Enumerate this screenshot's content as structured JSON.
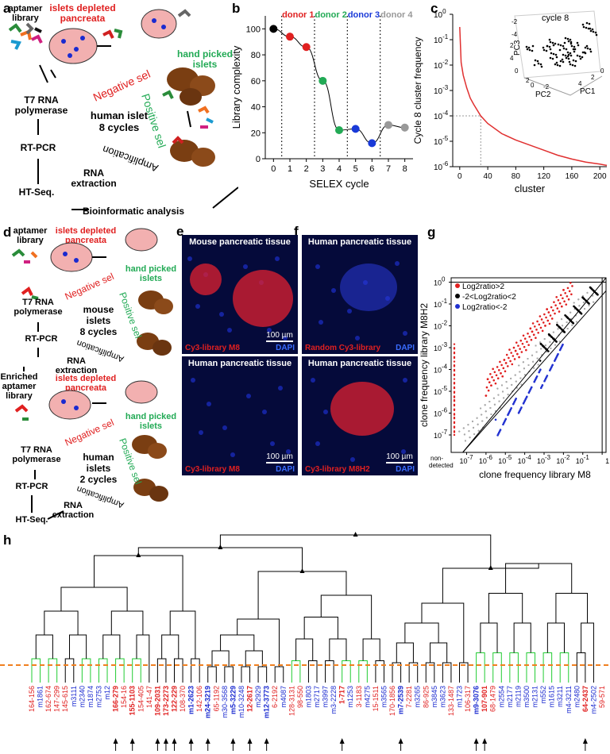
{
  "panels": {
    "a": "a",
    "b": "b",
    "c": "c",
    "d": "d",
    "e": "e",
    "f": "f",
    "g": "g",
    "h": "h"
  },
  "schemeA": {
    "aptamer_library": "aptamer\nlibrary",
    "islets_depleted": "islets depleted\npancreata",
    "hand_picked": "hand picked\nislets",
    "t7": "T7 RNA\npolymerase",
    "rtpcr": "RT-PCR",
    "rna_extraction": "RNA\nextraction",
    "htseq": "HT-Seq.",
    "bioinformatic": "Bioinformatic analysis",
    "center": "human islet\n8 cycles",
    "negative": "Negative sel",
    "positive": "Positive sel",
    "amplification": "Amplification"
  },
  "schemeD": {
    "aptamer_library": "aptamer\nlibrary",
    "islets_depleted": "islets depleted\npancreata",
    "hand_picked": "hand picked\nislets",
    "t7": "T7 RNA\npolymerase",
    "rtpcr": "RT-PCR",
    "rna_extraction": "RNA\nextraction",
    "center1": "mouse\nislets\n8 cycles",
    "enriched": "Enriched\naptamer\nlibrary",
    "islets_depleted2": "islets depleted\npancreata",
    "hand_picked2": "hand picked\nislets",
    "t72": "T7 RNA\npolymerase",
    "rtpcr2": "RT-PCR",
    "rna_extraction2": "RNA\nextraction",
    "htseq": "HT-Seq.",
    "center2": "human\nislets\n2 cycles",
    "negative": "Negative sel",
    "positive": "Positive sel",
    "amplification": "Amplification"
  },
  "chart_data": [
    {
      "type": "line",
      "panel": "b",
      "title": "",
      "xlabel": "SELEX cycle",
      "ylabel": "Library complexity",
      "x": [
        0,
        1,
        2,
        3,
        4,
        5,
        6,
        7,
        8
      ],
      "values": [
        100,
        94,
        86,
        60,
        22,
        23,
        12,
        26,
        24
      ],
      "point_colors": [
        "#000000",
        "#e02020",
        "#e02020",
        "#22aa55",
        "#22aa55",
        "#1a3ad8",
        "#1a3ad8",
        "#999999",
        "#999999"
      ],
      "ylim": [
        0,
        110
      ],
      "xlim": [
        -0.5,
        8.5
      ],
      "yticks": [
        0,
        20,
        40,
        60,
        80,
        100
      ],
      "xticks": [
        0,
        1,
        2,
        3,
        4,
        5,
        6,
        7,
        8
      ],
      "donors": [
        {
          "label": "donor 1",
          "color": "#e02020"
        },
        {
          "label": "donor 2",
          "color": "#22aa55"
        },
        {
          "label": "donor 3",
          "color": "#1a3ad8"
        },
        {
          "label": "donor 4",
          "color": "#999999"
        }
      ],
      "donor_boundaries": [
        0.5,
        2.5,
        4.5,
        6.5
      ]
    },
    {
      "type": "line",
      "panel": "c",
      "xlabel": "cluster",
      "ylabel": "Cycle 8 cluster frequency",
      "scale_y": "log",
      "xticks": [
        0,
        40,
        80,
        120,
        160,
        200
      ],
      "ytick_exponents": [
        0,
        -1,
        -2,
        -3,
        -4,
        -5,
        -6
      ],
      "curve_x": [
        0,
        2,
        5,
        10,
        15,
        20,
        30,
        40,
        60,
        80,
        100,
        120,
        140,
        160,
        180,
        200,
        210
      ],
      "curve_y_log10": [
        -0.5,
        -1.9,
        -2.4,
        -2.9,
        -3.3,
        -3.55,
        -4.0,
        -4.3,
        -4.7,
        -4.95,
        -5.15,
        -5.35,
        -5.55,
        -5.7,
        -5.82,
        -5.9,
        -5.95
      ],
      "marker": {
        "x": 30,
        "y_log10": -4
      },
      "line_color": "#e03030",
      "inset": {
        "title": "cycle 8",
        "axes": [
          "PC1",
          "PC2",
          "PC3"
        ],
        "ticks": [
          "2",
          "4",
          "0",
          "-2",
          "-4",
          "2",
          "0",
          "-2",
          "4",
          "2",
          "0"
        ]
      }
    },
    {
      "type": "scatter",
      "panel": "g",
      "xlabel": "clone frequency library M8",
      "ylabel": "clone frequency library M8H2",
      "scale": "log",
      "tick_exponents": [
        -7,
        -6,
        -5,
        -4,
        -3,
        -2,
        -1,
        0
      ],
      "nondetected_label": "non-\ndetected",
      "xtick_last": "1",
      "legend": [
        {
          "label": "Log2ratio>2",
          "color": "#e02020"
        },
        {
          "label": "-2<Log2ratio<2",
          "color": "#000000"
        },
        {
          "label": "Log2ratio<-2",
          "color": "#2030d0"
        }
      ]
    },
    {
      "type": "dendrogram",
      "panel": "h",
      "leaves": [
        {
          "label": "164-156",
          "color": "#e02020",
          "bold": false
        },
        {
          "label": "m1861",
          "color": "#1a2ad0",
          "bold": false
        },
        {
          "label": "162-674",
          "color": "#e02020",
          "bold": false
        },
        {
          "label": "147-299",
          "color": "#e02020",
          "bold": false
        },
        {
          "label": "145-615",
          "color": "#e02020",
          "bold": false
        },
        {
          "label": "m3111",
          "color": "#1a2ad0",
          "bold": false
        },
        {
          "label": "m2340",
          "color": "#1a2ad0",
          "bold": false
        },
        {
          "label": "m1874",
          "color": "#1a2ad0",
          "bold": false
        },
        {
          "label": "m2753",
          "color": "#1a2ad0",
          "bold": false
        },
        {
          "label": "m12",
          "color": "#1a2ad0",
          "bold": false
        },
        {
          "label": "166-279",
          "color": "#e02020",
          "bold": true
        },
        {
          "label": "154-16",
          "color": "#e02020",
          "bold": false
        },
        {
          "label": "155-1103",
          "color": "#e02020",
          "bold": true
        },
        {
          "label": "154-405",
          "color": "#e02020",
          "bold": false
        },
        {
          "label": "141-47",
          "color": "#e02020",
          "bold": false
        },
        {
          "label": "109-2031",
          "color": "#e02020",
          "bold": true
        },
        {
          "label": "173-2273",
          "color": "#e02020",
          "bold": true
        },
        {
          "label": "122-229",
          "color": "#e02020",
          "bold": true
        },
        {
          "label": "108-370",
          "color": "#e02020",
          "bold": false
        },
        {
          "label": "m1-2623",
          "color": "#1a2ad0",
          "bold": true
        },
        {
          "label": "142-106",
          "color": "#e02020",
          "bold": false
        },
        {
          "label": "m24-3219",
          "color": "#1a2ad0",
          "bold": true
        },
        {
          "label": "65-1192",
          "color": "#e02020",
          "bold": false
        },
        {
          "label": "m30-3568",
          "color": "#1a2ad0",
          "bold": false
        },
        {
          "label": "m5-3229",
          "color": "#1a2ad0",
          "bold": true
        },
        {
          "label": "m10-3248",
          "color": "#1a2ad0",
          "bold": false
        },
        {
          "label": "12-2617",
          "color": "#e02020",
          "bold": true
        },
        {
          "label": "m2929",
          "color": "#1a2ad0",
          "bold": false
        },
        {
          "label": "m12-3773",
          "color": "#1a2ad0",
          "bold": true
        },
        {
          "label": "6-2192",
          "color": "#e02020",
          "bold": false
        },
        {
          "label": "m4087",
          "color": "#1a2ad0",
          "bold": false
        },
        {
          "label": "128-3131",
          "color": "#e02020",
          "bold": false
        },
        {
          "label": "98-550",
          "color": "#e02020",
          "bold": false
        },
        {
          "label": "m1803",
          "color": "#1a2ad0",
          "bold": false
        },
        {
          "label": "m2717",
          "color": "#1a2ad0",
          "bold": false
        },
        {
          "label": "m3997",
          "color": "#1a2ad0",
          "bold": false
        },
        {
          "label": "m3-2228",
          "color": "#1a2ad0",
          "bold": false
        },
        {
          "label": "1-717",
          "color": "#e02020",
          "bold": true
        },
        {
          "label": "m1253",
          "color": "#1a2ad0",
          "bold": false
        },
        {
          "label": "3-1183",
          "color": "#e02020",
          "bold": false
        },
        {
          "label": "m4275",
          "color": "#1a2ad0",
          "bold": false
        },
        {
          "label": "15-1511",
          "color": "#e02020",
          "bold": false
        },
        {
          "label": "m3565",
          "color": "#1a2ad0",
          "bold": false
        },
        {
          "label": "170-1856",
          "color": "#e02020",
          "bold": false
        },
        {
          "label": "m7-2539",
          "color": "#1a2ad0",
          "bold": true
        },
        {
          "label": "7-2281",
          "color": "#e02020",
          "bold": false
        },
        {
          "label": "m3265",
          "color": "#1a2ad0",
          "bold": false
        },
        {
          "label": "86-925",
          "color": "#e02020",
          "bold": false
        },
        {
          "label": "m3845",
          "color": "#1a2ad0",
          "bold": false
        },
        {
          "label": "m3623",
          "color": "#1a2ad0",
          "bold": false
        },
        {
          "label": "133-1487",
          "color": "#e02020",
          "bold": false
        },
        {
          "label": "m1723",
          "color": "#1a2ad0",
          "bold": false
        },
        {
          "label": "106-317",
          "color": "#e02020",
          "bold": false
        },
        {
          "label": "m9-3076",
          "color": "#1a2ad0",
          "bold": true
        },
        {
          "label": "107-901",
          "color": "#e02020",
          "bold": true
        },
        {
          "label": "68-1479",
          "color": "#e02020",
          "bold": false
        },
        {
          "label": "m2554",
          "color": "#1a2ad0",
          "bold": false
        },
        {
          "label": "m2177",
          "color": "#1a2ad0",
          "bold": false
        },
        {
          "label": "m2119",
          "color": "#1a2ad0",
          "bold": false
        },
        {
          "label": "m3500",
          "color": "#1a2ad0",
          "bold": false
        },
        {
          "label": "m2131",
          "color": "#1a2ad0",
          "bold": false
        },
        {
          "label": "m552",
          "color": "#1a2ad0",
          "bold": false
        },
        {
          "label": "m1615",
          "color": "#1a2ad0",
          "bold": false
        },
        {
          "label": "m3211",
          "color": "#1a2ad0",
          "bold": false
        },
        {
          "label": "m4-3211",
          "color": "#1a2ad0",
          "bold": false
        },
        {
          "label": "m2480",
          "color": "#1a2ad0",
          "bold": false
        },
        {
          "label": "64-2437",
          "color": "#e02020",
          "bold": true
        },
        {
          "label": "m4-2502",
          "color": "#1a2ad0",
          "bold": false
        },
        {
          "label": "59-571",
          "color": "#e02020",
          "bold": false
        }
      ],
      "arrow_leaf_indices": [
        10,
        12,
        15,
        16,
        17,
        19,
        21,
        24,
        26,
        28,
        37,
        44,
        53,
        54,
        66
      ]
    }
  ],
  "micrographs": {
    "e_top": {
      "title": "Mouse pancreatic tissue",
      "caption": "Cy3-library M8",
      "dapi": "DAPI",
      "scale": "100 µm"
    },
    "e_bottom": {
      "title": "Human pancreatic tissue",
      "caption": "Cy3-library M8",
      "dapi": "DAPI",
      "scale": "100 µm"
    },
    "f_top": {
      "title": "Human pancreatic tissue",
      "caption": "Random Cy3-library",
      "dapi": "DAPI",
      "scale": ""
    },
    "f_bottom": {
      "title": "Human pancreatic tissue",
      "caption": "Cy3-library M8H2",
      "dapi": "DAPI",
      "scale": "100 µm"
    }
  },
  "colors": {
    "red": "#e02020",
    "green": "#22aa55",
    "blue": "#1a2ad0",
    "gray": "#999999",
    "dapi_bg": "#050a3a",
    "cy3": "#e02030"
  }
}
